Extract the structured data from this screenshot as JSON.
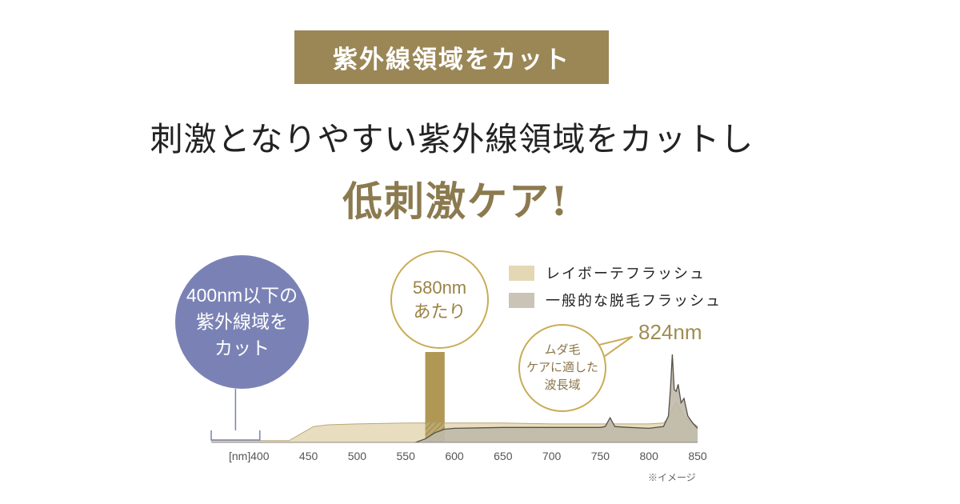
{
  "badge": {
    "text": "紫外線領域をカット"
  },
  "headline": {
    "text": "刺激となりやすい紫外線領域をカットし"
  },
  "subhead": {
    "text": "低刺激ケア!"
  },
  "annotations": {
    "uv_cut": [
      "400nm以下の",
      "紫外線域を",
      "カット"
    ],
    "peak_580": [
      "580nm",
      "あたり"
    ],
    "hair_care": [
      "ムダ毛",
      "ケアに適した",
      "波長域"
    ],
    "peak_824": "824nm",
    "note": "※イメージ"
  },
  "legend": [
    {
      "label": "レイボーテフラッシュ",
      "color": "#e4d8b4"
    },
    {
      "label": "一般的な脱毛フラッシュ",
      "color": "#c9c4b6"
    }
  ],
  "colors": {
    "badge_bg": "#9b8756",
    "subhead": "#8c7a4f",
    "uv_circle": "#7a82b5",
    "highlight_bar": "#b09854",
    "series1_fill": "#e4d8b4",
    "series2_fill": "#bfb9aa"
  },
  "chart_data": {
    "type": "area",
    "x_unit": "[nm]",
    "xlim": [
      350,
      850
    ],
    "ylim": [
      0,
      100
    ],
    "x_ticks": [
      400,
      450,
      500,
      550,
      600,
      650,
      700,
      750,
      800,
      850
    ],
    "highlight_range": [
      570,
      590
    ],
    "uv_bracket_range": [
      350,
      400
    ],
    "series": [
      {
        "name": "レイボーテフラッシュ",
        "x": [
          350,
          400,
          430,
          455,
          470,
          500,
          550,
          570,
          600,
          650,
          700,
          750,
          760,
          765,
          800,
          815,
          820,
          824,
          828,
          832,
          836,
          840,
          845,
          850
        ],
        "y": [
          2,
          2,
          2,
          18,
          20,
          21,
          22,
          22,
          22,
          22,
          21,
          21,
          21,
          21,
          21,
          22,
          28,
          38,
          45,
          38,
          30,
          26,
          22,
          18
        ]
      },
      {
        "name": "一般的な脱毛フラッシュ",
        "x": [
          560,
          570,
          580,
          590,
          600,
          650,
          700,
          750,
          755,
          760,
          765,
          780,
          800,
          815,
          820,
          822,
          824,
          826,
          828,
          830,
          833,
          836,
          840,
          845,
          850
        ],
        "y": [
          0,
          4,
          11,
          15,
          16,
          17,
          17,
          17,
          18,
          28,
          18,
          17,
          16,
          18,
          30,
          60,
          100,
          60,
          58,
          66,
          45,
          50,
          30,
          22,
          16
        ]
      }
    ]
  }
}
